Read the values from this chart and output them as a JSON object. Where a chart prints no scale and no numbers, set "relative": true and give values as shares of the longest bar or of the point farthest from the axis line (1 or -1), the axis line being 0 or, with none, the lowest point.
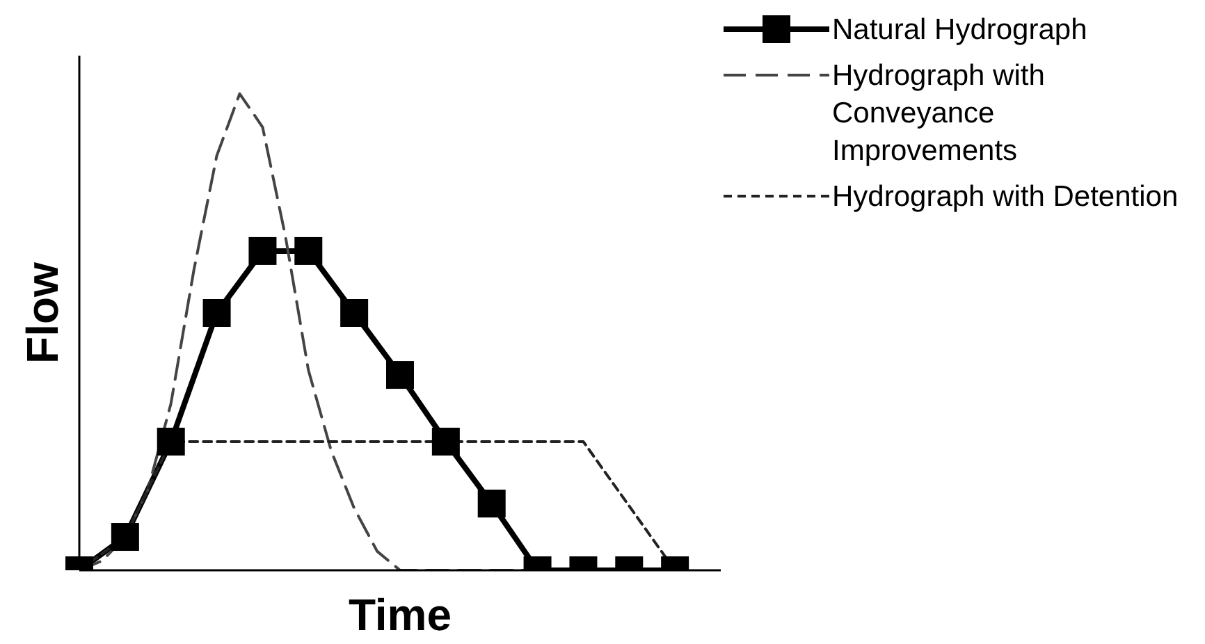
{
  "chart_data": {
    "type": "line",
    "xlabel": "Time",
    "ylabel": "Flow",
    "relative": true,
    "grid": false,
    "legend": "top right",
    "categories": [
      null,
      null,
      null,
      null,
      null,
      null,
      null,
      null,
      null,
      null,
      null,
      null,
      null,
      null,
      null,
      null,
      null,
      null,
      null,
      null,
      null,
      null,
      null,
      null,
      null,
      null,
      null,
      null,
      null
    ],
    "series": [
      {
        "name": "Natural Hydrograph",
        "color": "#000000",
        "marker": "square",
        "line_style": "solid",
        "values": [
          0,
          null,
          0.07,
          null,
          0.27,
          null,
          0.54,
          null,
          0.67,
          null,
          0.67,
          null,
          0.54,
          null,
          0.41,
          null,
          0.27,
          null,
          0.14,
          null,
          0,
          null,
          0,
          null,
          0,
          null,
          0,
          null,
          null
        ]
      },
      {
        "name": "Hydrograph with Conveyance Improvements",
        "color": "#444444",
        "marker": "none",
        "line_style": "dashed",
        "values": [
          0,
          0.02,
          0.07,
          0.17,
          0.35,
          0.63,
          0.87,
          1,
          0.93,
          0.7,
          0.42,
          0.25,
          0.13,
          0.04,
          0,
          0,
          0,
          0,
          0,
          0,
          0,
          null,
          null,
          null,
          null,
          null,
          null,
          null,
          null
        ]
      },
      {
        "name": "Hydrograph with Detention",
        "color": "#222222",
        "marker": "none",
        "line_style": "dotted",
        "values": [
          0,
          null,
          0.07,
          null,
          0.27,
          null,
          null,
          null,
          null,
          null,
          null,
          null,
          null,
          null,
          null,
          null,
          null,
          null,
          null,
          null,
          null,
          null,
          0.27,
          null,
          null,
          null,
          0,
          null,
          null
        ]
      }
    ]
  }
}
